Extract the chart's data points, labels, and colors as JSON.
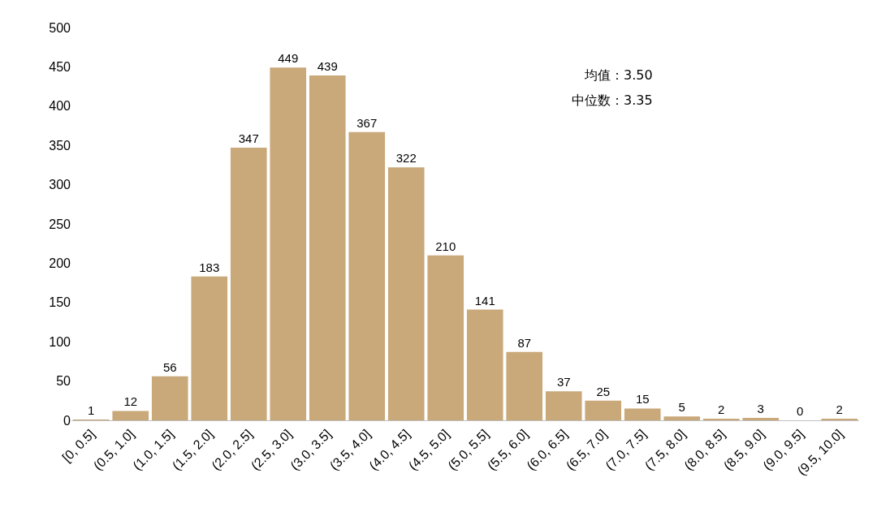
{
  "chart_data": {
    "type": "bar",
    "categories": [
      "[0, 0.5]",
      "(0.5, 1.0]",
      "(1.0, 1.5]",
      "(1.5, 2.0]",
      "(2.0, 2.5]",
      "(2.5, 3.0]",
      "(3.0, 3.5]",
      "(3.5, 4.0]",
      "(4.0, 4.5]",
      "(4.5, 5.0]",
      "(5.0, 5.5]",
      "(5.5, 6.0]",
      "(6.0, 6.5]",
      "(6.5, 7.0]",
      "(7.0, 7.5]",
      "(7.5, 8.0]",
      "(8.0, 8.5]",
      "(8.5, 9.0]",
      "(9.0, 9.5]",
      "(9.5, 10.0]"
    ],
    "values": [
      1,
      12,
      56,
      183,
      347,
      449,
      439,
      367,
      322,
      210,
      141,
      87,
      37,
      25,
      15,
      5,
      2,
      3,
      0,
      2
    ],
    "color": "#c9a87a",
    "data_labels": true,
    "ylim": [
      0,
      500
    ],
    "yticks": [
      0,
      50,
      100,
      150,
      200,
      250,
      300,
      350,
      400,
      450,
      500
    ],
    "grid": false,
    "legend": false,
    "annotations": [
      "均值：3.50",
      "中位数：3.35"
    ]
  }
}
